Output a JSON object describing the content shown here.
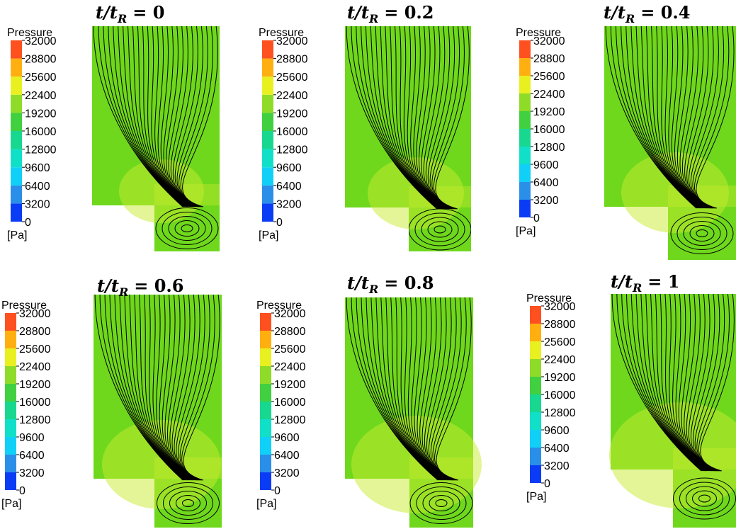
{
  "colorbar": {
    "label": "Pressure",
    "unit": "[Pa]",
    "ticks": [
      0,
      3200,
      6400,
      9600,
      12800,
      16000,
      19200,
      22400,
      25600,
      28800,
      32000
    ],
    "colors": [
      "#0a3cf5",
      "#2a8fe8",
      "#10d0f8",
      "#10e0c8",
      "#18d890",
      "#40d040",
      "#8edc28",
      "#e8f020",
      "#ffb010",
      "#ff5020"
    ]
  },
  "panels": [
    {
      "title": {
        "lhs": "t/t",
        "sub": "R",
        "rhs": "= 0"
      }
    },
    {
      "title": {
        "lhs": "t/t",
        "sub": "R",
        "rhs": "= 0.2"
      }
    },
    {
      "title": {
        "lhs": "t/t",
        "sub": "R",
        "rhs": "= 0.4"
      }
    },
    {
      "title": {
        "lhs": "t/t",
        "sub": "R",
        "rhs": "= 0.6"
      }
    },
    {
      "title": {
        "lhs": "t/t",
        "sub": "R",
        "rhs": "= 0.8"
      }
    },
    {
      "title": {
        "lhs": "t/t",
        "sub": "R",
        "rhs": "= 1"
      }
    }
  ]
}
